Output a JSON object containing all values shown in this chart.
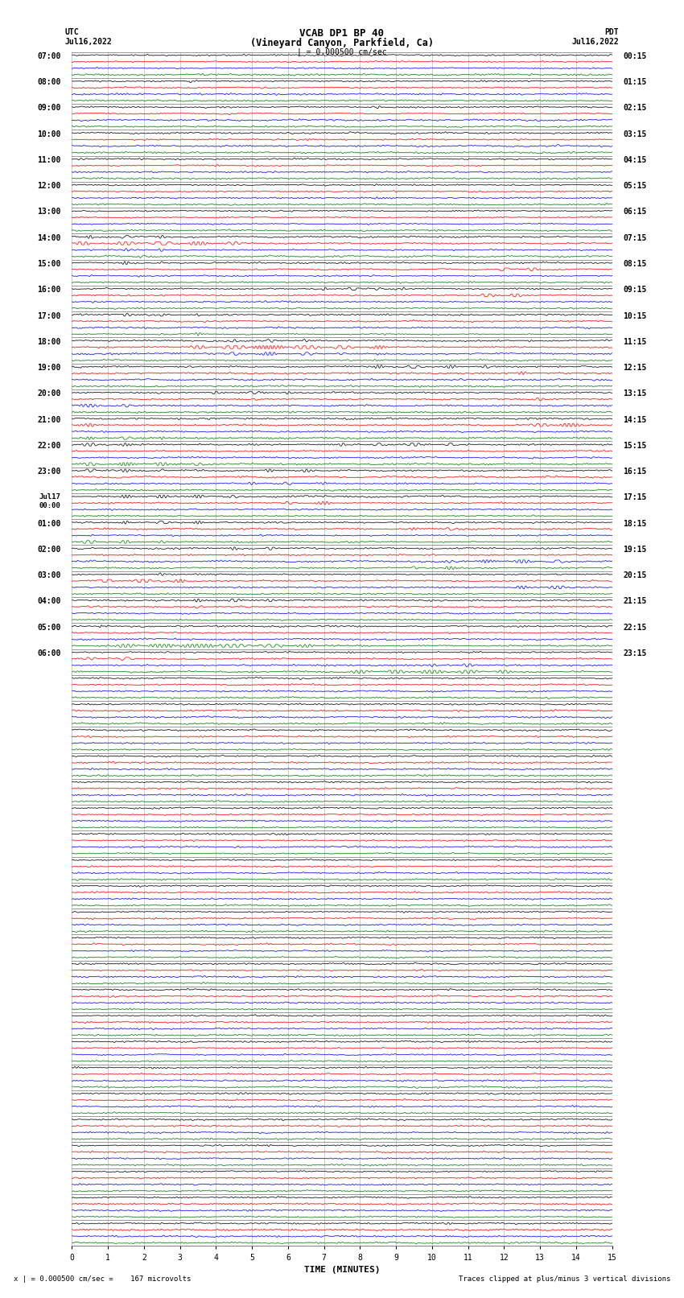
{
  "title_line1": "VCAB DP1 BP 40",
  "title_line2": "(Vineyard Canyon, Parkfield, Ca)",
  "scale_label": "| = 0.000500 cm/sec",
  "utc_label": "UTC",
  "pdt_label": "PDT",
  "date_left": "Jul16,2022",
  "date_right": "Jul16,2022",
  "xlabel": "TIME (MINUTES)",
  "bottom_left": "x | = 0.000500 cm/sec =    167 microvolts",
  "bottom_right": "Traces clipped at plus/minus 3 vertical divisions",
  "figsize": [
    8.5,
    16.13
  ],
  "dpi": 100,
  "bg_color": "#ffffff",
  "trace_colors": [
    "black",
    "red",
    "blue",
    "green"
  ],
  "num_rows": 46,
  "minutes_per_row": 15,
  "traces_per_row": 4,
  "noise_seed": 42,
  "grid_color": "#bbbbbb",
  "tick_fontsize": 7,
  "label_fontsize": 8,
  "title_fontsize": 9,
  "utc_labels": [
    [
      0,
      "07:00"
    ],
    [
      1,
      "08:00"
    ],
    [
      2,
      "09:00"
    ],
    [
      3,
      "10:00"
    ],
    [
      4,
      "11:00"
    ],
    [
      5,
      "12:00"
    ],
    [
      6,
      "13:00"
    ],
    [
      7,
      "14:00"
    ],
    [
      8,
      "15:00"
    ],
    [
      9,
      "16:00"
    ],
    [
      10,
      "17:00"
    ],
    [
      11,
      "18:00"
    ],
    [
      12,
      "19:00"
    ],
    [
      13,
      "20:00"
    ],
    [
      14,
      "21:00"
    ],
    [
      15,
      "22:00"
    ],
    [
      16,
      "23:00"
    ],
    [
      17,
      "Jul17\n00:00"
    ],
    [
      18,
      "01:00"
    ],
    [
      19,
      "02:00"
    ],
    [
      20,
      "03:00"
    ],
    [
      21,
      "04:00"
    ],
    [
      22,
      "05:00"
    ],
    [
      23,
      "06:00"
    ]
  ],
  "pdt_labels": [
    [
      0,
      "00:15"
    ],
    [
      1,
      "01:15"
    ],
    [
      2,
      "02:15"
    ],
    [
      3,
      "03:15"
    ],
    [
      4,
      "04:15"
    ],
    [
      5,
      "05:15"
    ],
    [
      6,
      "06:15"
    ],
    [
      7,
      "07:15"
    ],
    [
      8,
      "08:15"
    ],
    [
      9,
      "09:15"
    ],
    [
      10,
      "10:15"
    ],
    [
      11,
      "11:15"
    ],
    [
      12,
      "12:15"
    ],
    [
      13,
      "13:15"
    ],
    [
      14,
      "14:15"
    ],
    [
      15,
      "15:15"
    ],
    [
      16,
      "16:15"
    ],
    [
      17,
      "17:15"
    ],
    [
      18,
      "18:15"
    ],
    [
      19,
      "19:15"
    ],
    [
      20,
      "20:15"
    ],
    [
      21,
      "21:15"
    ],
    [
      22,
      "22:15"
    ],
    [
      23,
      "23:15"
    ]
  ]
}
